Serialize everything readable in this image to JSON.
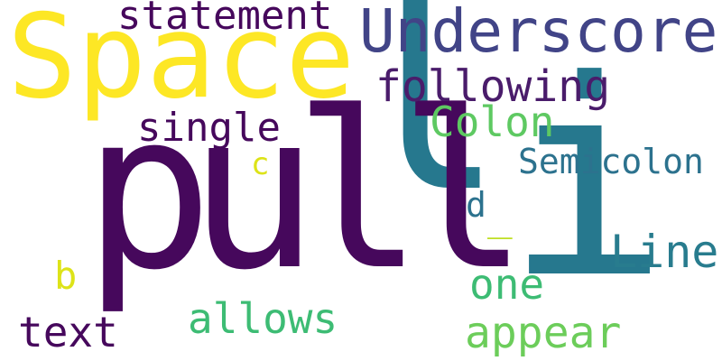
{
  "words": [
    {
      "text": "Space",
      "color": "#fde725"
    },
    {
      "text": "Underscore",
      "color": "#414487"
    },
    {
      "text": "statement",
      "color": "#46085c"
    },
    {
      "text": "following",
      "color": "#4a1c6b"
    },
    {
      "text": "Colon",
      "color": "#5ec962"
    },
    {
      "text": "single",
      "color": "#46085c"
    },
    {
      "text": "Semicolon",
      "color": "#2c728e"
    },
    {
      "text": "c",
      "color": "#dde318"
    },
    {
      "text": "d",
      "color": "#2c728e"
    },
    {
      "text": "_",
      "color": "#c0df25"
    },
    {
      "text": "Line",
      "color": "#287c8e"
    },
    {
      "text": "b",
      "color": "#dde318"
    },
    {
      "text": "one",
      "color": "#3dbc74"
    },
    {
      "text": "allows",
      "color": "#3dbc74"
    },
    {
      "text": "text",
      "color": "#46085c"
    },
    {
      "text": "appear",
      "color": "#6ccd5a"
    },
    {
      "text": "pull",
      "color": "#46085c"
    },
    {
      "text": "i",
      "color": "#26788e"
    },
    {
      "text": "l",
      "color": "#26788e"
    }
  ]
}
